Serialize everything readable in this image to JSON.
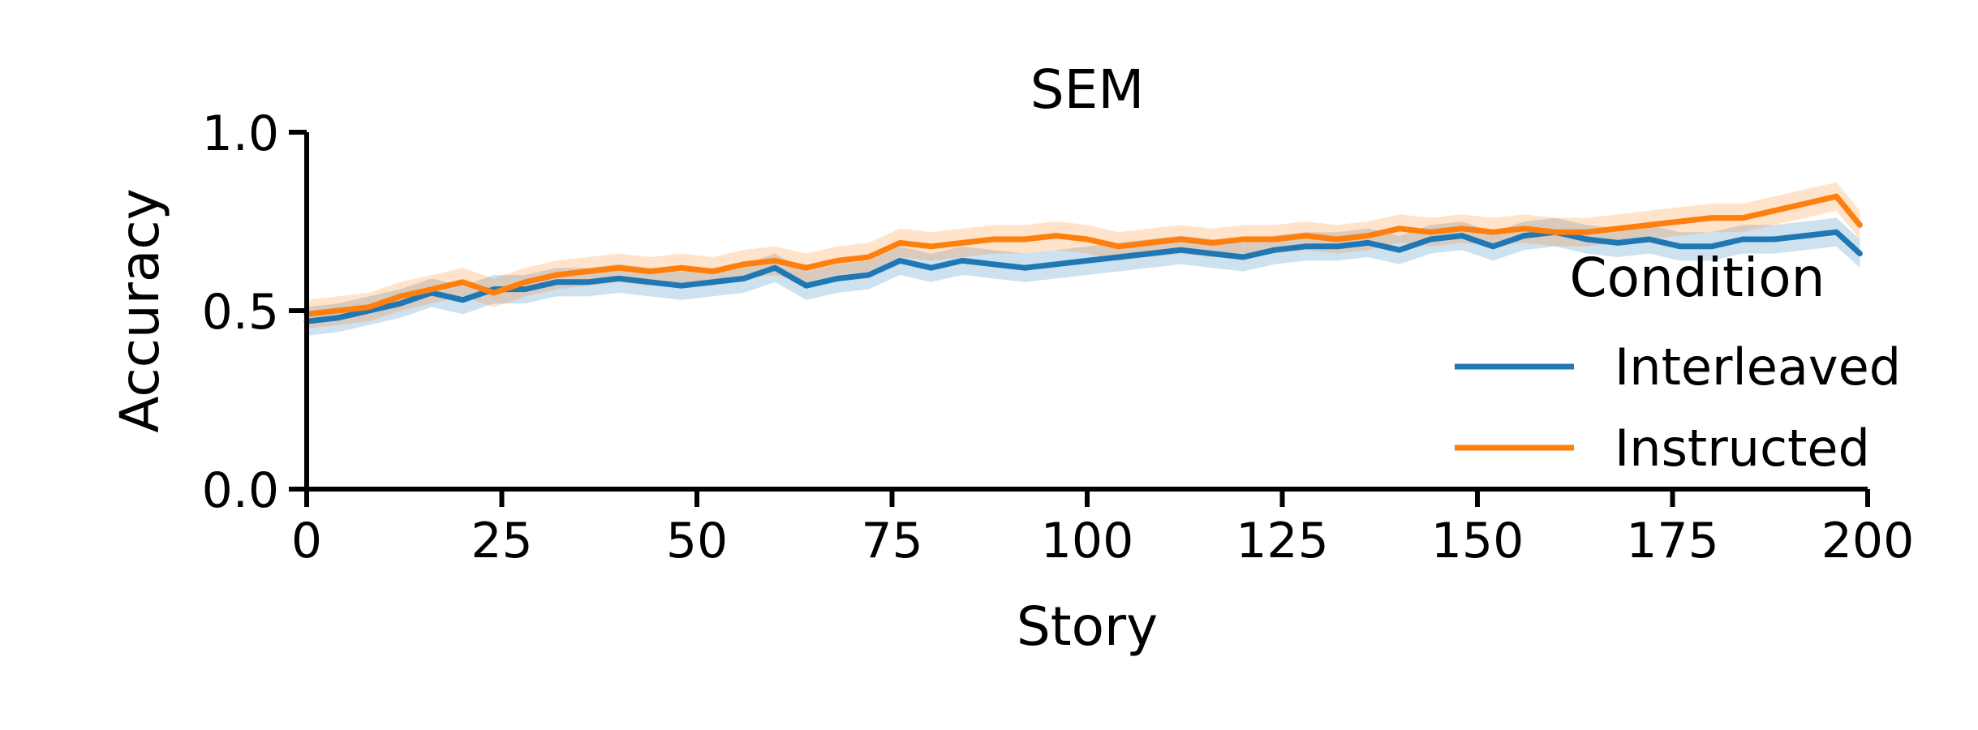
{
  "chart_data": {
    "type": "line",
    "title": "SEM",
    "xlabel": "Story",
    "ylabel": "Accuracy",
    "xlim": [
      0,
      200
    ],
    "ylim": [
      0,
      1
    ],
    "xticks": [
      0,
      25,
      50,
      75,
      100,
      125,
      150,
      175,
      200
    ],
    "yticks": [
      0.0,
      0.5,
      1.0
    ],
    "xtick_labels": [
      "0",
      "25",
      "50",
      "75",
      "100",
      "125",
      "150",
      "175",
      "200"
    ],
    "ytick_labels": [
      "0.0",
      "0.5",
      "1.0"
    ],
    "grid": false,
    "legend": {
      "title": "Condition",
      "placement": "right",
      "entries": [
        "Interleaved",
        "Instructed"
      ]
    },
    "series": [
      {
        "name": "Interleaved",
        "color": "#1f77b4",
        "band_halfwidth": 0.04,
        "x": [
          0,
          4,
          8,
          12,
          16,
          20,
          24,
          28,
          32,
          36,
          40,
          44,
          48,
          52,
          56,
          60,
          64,
          68,
          72,
          76,
          80,
          84,
          88,
          92,
          96,
          100,
          104,
          108,
          112,
          116,
          120,
          124,
          128,
          132,
          136,
          140,
          144,
          148,
          152,
          156,
          160,
          164,
          168,
          172,
          176,
          180,
          184,
          188,
          192,
          196,
          199
        ],
        "y": [
          0.47,
          0.48,
          0.5,
          0.52,
          0.55,
          0.53,
          0.56,
          0.56,
          0.58,
          0.58,
          0.59,
          0.58,
          0.57,
          0.58,
          0.59,
          0.62,
          0.57,
          0.59,
          0.6,
          0.64,
          0.62,
          0.64,
          0.63,
          0.62,
          0.63,
          0.64,
          0.65,
          0.66,
          0.67,
          0.66,
          0.65,
          0.67,
          0.68,
          0.68,
          0.69,
          0.67,
          0.7,
          0.71,
          0.68,
          0.71,
          0.72,
          0.7,
          0.69,
          0.7,
          0.68,
          0.68,
          0.7,
          0.7,
          0.71,
          0.72,
          0.66
        ]
      },
      {
        "name": "Instructed",
        "color": "#ff7f0e",
        "band_halfwidth": 0.04,
        "x": [
          0,
          4,
          8,
          12,
          16,
          20,
          24,
          28,
          32,
          36,
          40,
          44,
          48,
          52,
          56,
          60,
          64,
          68,
          72,
          76,
          80,
          84,
          88,
          92,
          96,
          100,
          104,
          108,
          112,
          116,
          120,
          124,
          128,
          132,
          136,
          140,
          144,
          148,
          152,
          156,
          160,
          164,
          168,
          172,
          176,
          180,
          184,
          188,
          192,
          196,
          199
        ],
        "y": [
          0.49,
          0.5,
          0.51,
          0.54,
          0.56,
          0.58,
          0.55,
          0.58,
          0.6,
          0.61,
          0.62,
          0.61,
          0.62,
          0.61,
          0.63,
          0.64,
          0.62,
          0.64,
          0.65,
          0.69,
          0.68,
          0.69,
          0.7,
          0.7,
          0.71,
          0.7,
          0.68,
          0.69,
          0.7,
          0.69,
          0.7,
          0.7,
          0.71,
          0.7,
          0.71,
          0.73,
          0.72,
          0.73,
          0.72,
          0.73,
          0.72,
          0.72,
          0.73,
          0.74,
          0.75,
          0.76,
          0.76,
          0.78,
          0.8,
          0.82,
          0.74
        ]
      }
    ]
  }
}
